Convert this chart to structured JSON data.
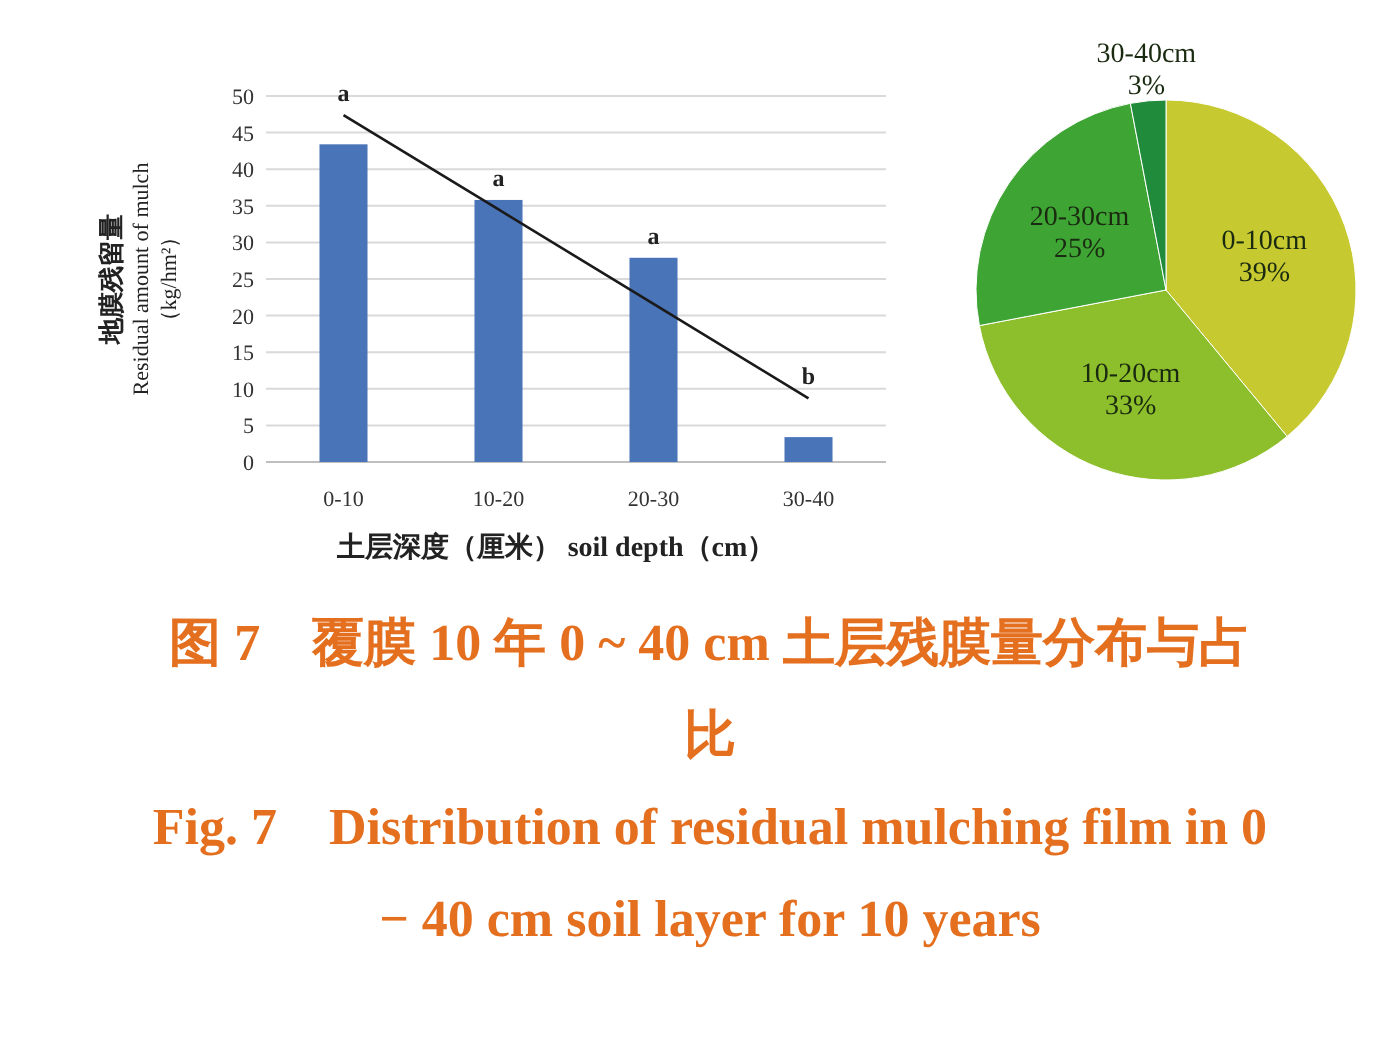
{
  "chart_data": [
    {
      "type": "bar",
      "categories": [
        "0-10",
        "10-20",
        "20-30",
        "30-40"
      ],
      "series": [
        {
          "type": "bar",
          "color": "#4a74b8",
          "values": [
            43.4,
            35.8,
            27.9,
            3.4
          ]
        },
        {
          "type": "line",
          "color": "#1a1a1a",
          "values": [
            47.4,
            34.5,
            21.6,
            8.7
          ]
        }
      ],
      "ylim": [
        0,
        50
      ],
      "yticks": [
        0,
        5,
        10,
        15,
        20,
        25,
        30,
        35,
        40,
        45,
        50
      ],
      "grid": "y",
      "xlabel": "土层深度（厘米） soil depth（cm）",
      "ylabel": "地膜残留量\nResidual amount of mulch\n（kg/hm²）",
      "annotations": [
        "a",
        "a",
        "a",
        "b",
        "图 7　覆膜 10 年 0 ~ 40 cm 土层残膜量分布与占比",
        "Fig. 7　Distribution of residual mulching film in 0 − 40 cm soil layer for 10 years"
      ]
    },
    {
      "type": "pie",
      "categories": [
        "0-10cm",
        "10-20cm",
        "20-30cm",
        "30-40cm"
      ],
      "values": [
        39,
        33,
        25,
        3
      ],
      "colors": [
        "#c6c930",
        "#8dbe2b",
        "#3ea535",
        "#1f8b3b"
      ],
      "value_labels": [
        "39%",
        "33%",
        "25%",
        "3%"
      ]
    }
  ]
}
